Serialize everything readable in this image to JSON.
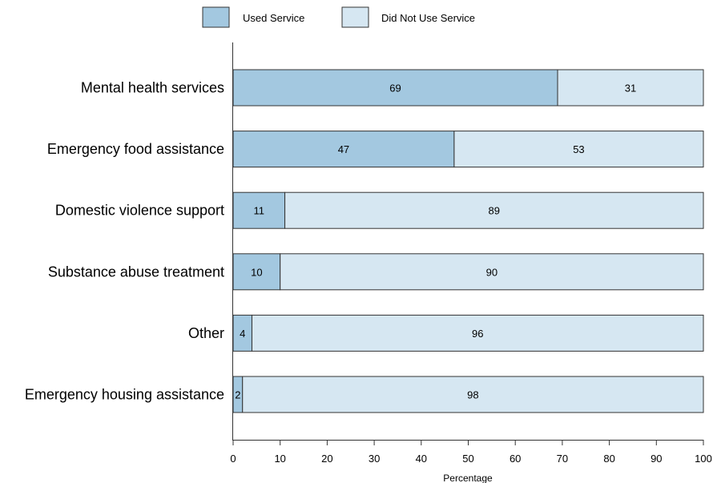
{
  "chart_data": {
    "type": "bar",
    "orientation": "horizontal",
    "stacked": true,
    "categories": [
      "Mental health services",
      "Emergency food assistance",
      "Domestic violence support",
      "Substance abuse treatment",
      "Other",
      "Emergency housing assistance"
    ],
    "series": [
      {
        "name": "Used Service",
        "color": "#a3c8e0",
        "values": [
          69,
          47,
          11,
          10,
          4,
          2
        ]
      },
      {
        "name": "Did Not Use Service",
        "color": "#d6e7f2",
        "values": [
          31,
          53,
          89,
          90,
          96,
          98
        ]
      }
    ],
    "xlabel": "Percentage",
    "ylabel": "",
    "xlim": [
      0,
      100
    ],
    "xticks": [
      0,
      10,
      20,
      30,
      40,
      50,
      60,
      70,
      80,
      90,
      100
    ],
    "grid": false,
    "legend": "top-center"
  }
}
